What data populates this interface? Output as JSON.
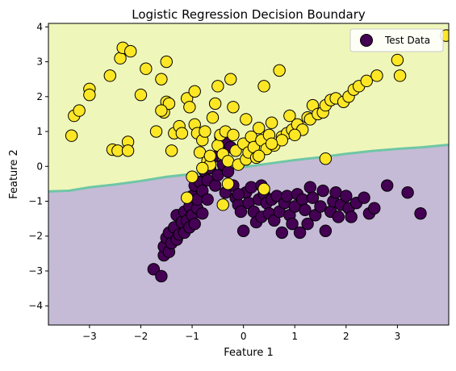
{
  "chart_data": {
    "type": "scatter",
    "title": "Logistic Regression Decision Boundary",
    "xlabel": "Feature 1",
    "ylabel": "Feature 2",
    "xlim": [
      -3.8,
      4.0
    ],
    "ylim": [
      -4.55,
      4.1
    ],
    "xticks": [
      -3,
      -2,
      -1,
      0,
      1,
      2,
      3
    ],
    "yticks": [
      -4,
      -3,
      -2,
      -1,
      0,
      1,
      2,
      3,
      4
    ],
    "grid": false,
    "legend": {
      "position": "top-right",
      "entries": [
        {
          "label": "Test Data",
          "marker_color": "#440154"
        }
      ]
    },
    "decision_boundary": {
      "description_colors": {
        "class0_region": "#c6bbd6",
        "class1_region": "#eff6b9",
        "boundary_line": "#6fc6a6"
      },
      "boundary_points": [
        [
          -3.8,
          -0.72
        ],
        [
          -3.4,
          -0.7
        ],
        [
          -3.0,
          -0.6
        ],
        [
          -2.5,
          -0.52
        ],
        [
          -2.0,
          -0.42
        ],
        [
          -1.5,
          -0.3
        ],
        [
          -1.0,
          -0.22
        ],
        [
          -0.5,
          -0.12
        ],
        [
          0.0,
          -0.02
        ],
        [
          0.5,
          0.08
        ],
        [
          1.0,
          0.18
        ],
        [
          1.5,
          0.26
        ],
        [
          2.0,
          0.36
        ],
        [
          2.5,
          0.44
        ],
        [
          3.0,
          0.5
        ],
        [
          3.5,
          0.55
        ],
        [
          4.0,
          0.62
        ]
      ]
    },
    "series": [
      {
        "class": 0,
        "color": "#440154",
        "points": [
          [
            -1.75,
            -2.95
          ],
          [
            -1.6,
            -3.15
          ],
          [
            -1.55,
            -2.55
          ],
          [
            -1.55,
            -2.3
          ],
          [
            -1.5,
            -2.05
          ],
          [
            -1.45,
            -2.45
          ],
          [
            -1.45,
            -1.9
          ],
          [
            -1.4,
            -2.2
          ],
          [
            -1.35,
            -1.75
          ],
          [
            -1.3,
            -2.1
          ],
          [
            -1.3,
            -1.4
          ],
          [
            -1.25,
            -1.95
          ],
          [
            -1.2,
            -1.6
          ],
          [
            -1.15,
            -1.9
          ],
          [
            -1.15,
            -1.3
          ],
          [
            -1.1,
            -1.55
          ],
          [
            -1.05,
            -1.15
          ],
          [
            -1.05,
            -1.75
          ],
          [
            -1.0,
            -0.85
          ],
          [
            -1.0,
            -1.4
          ],
          [
            -0.95,
            -1.65
          ],
          [
            -0.95,
            -0.55
          ],
          [
            -0.9,
            -1.2
          ],
          [
            -0.9,
            -0.95
          ],
          [
            -0.85,
            -0.45
          ],
          [
            -0.8,
            -1.35
          ],
          [
            -0.8,
            -0.7
          ],
          [
            -0.75,
            -0.15
          ],
          [
            -0.7,
            -0.95
          ],
          [
            -0.7,
            -0.4
          ],
          [
            -0.65,
            -0.05
          ],
          [
            -0.6,
            0.25
          ],
          [
            -0.55,
            -0.55
          ],
          [
            -0.5,
            -0.25
          ],
          [
            -0.45,
            0.85
          ],
          [
            -0.45,
            0.45
          ],
          [
            -0.4,
            0.05
          ],
          [
            -0.35,
            -0.75
          ],
          [
            -0.35,
            0.75
          ],
          [
            -0.3,
            -0.15
          ],
          [
            -0.25,
            0.55
          ],
          [
            -0.2,
            -0.55
          ],
          [
            -0.15,
            -0.9
          ],
          [
            -0.1,
            -1.1
          ],
          [
            -0.05,
            -1.3
          ],
          [
            0.0,
            -1.85
          ],
          [
            0.05,
            -0.75
          ],
          [
            0.1,
            -1.05
          ],
          [
            0.15,
            -0.6
          ],
          [
            0.2,
            -1.3
          ],
          [
            0.25,
            -1.6
          ],
          [
            0.3,
            -0.95
          ],
          [
            0.35,
            -1.45
          ],
          [
            0.4,
            -0.8
          ],
          [
            0.45,
            -1.05
          ],
          [
            0.5,
            -1.35
          ],
          [
            0.55,
            -0.95
          ],
          [
            0.6,
            -1.55
          ],
          [
            0.65,
            -0.85
          ],
          [
            0.7,
            -1.3
          ],
          [
            0.75,
            -1.9
          ],
          [
            0.8,
            -1.05
          ],
          [
            0.85,
            -0.85
          ],
          [
            0.9,
            -1.4
          ],
          [
            0.95,
            -1.65
          ],
          [
            1.0,
            -1.15
          ],
          [
            1.05,
            -0.8
          ],
          [
            1.1,
            -1.9
          ],
          [
            1.15,
            -0.95
          ],
          [
            1.2,
            -1.25
          ],
          [
            1.25,
            -1.65
          ],
          [
            1.3,
            -0.6
          ],
          [
            1.35,
            -0.9
          ],
          [
            1.4,
            -1.4
          ],
          [
            1.5,
            -1.15
          ],
          [
            1.55,
            -0.7
          ],
          [
            1.6,
            -1.85
          ],
          [
            1.7,
            -1.3
          ],
          [
            1.75,
            -1.0
          ],
          [
            1.8,
            -0.75
          ],
          [
            1.85,
            -1.45
          ],
          [
            1.9,
            -1.1
          ],
          [
            2.0,
            -0.85
          ],
          [
            2.05,
            -1.2
          ],
          [
            2.1,
            -1.45
          ],
          [
            2.2,
            -1.05
          ],
          [
            2.35,
            -0.9
          ],
          [
            2.45,
            -1.35
          ],
          [
            2.55,
            -1.2
          ],
          [
            2.8,
            -0.55
          ],
          [
            3.2,
            -0.75
          ],
          [
            3.45,
            -1.35
          ],
          [
            0.35,
            -0.55
          ],
          [
            -0.1,
            -0.8
          ]
        ]
      },
      {
        "class": 1,
        "color": "#fde725",
        "points": [
          [
            -3.35,
            0.88
          ],
          [
            -3.3,
            1.45
          ],
          [
            -3.2,
            1.6
          ],
          [
            -3.0,
            2.22
          ],
          [
            -3.0,
            2.05
          ],
          [
            -2.6,
            2.6
          ],
          [
            -2.55,
            0.48
          ],
          [
            -2.45,
            0.45
          ],
          [
            -2.4,
            3.1
          ],
          [
            -2.35,
            3.4
          ],
          [
            -2.25,
            0.7
          ],
          [
            -2.25,
            0.45
          ],
          [
            -2.2,
            3.3
          ],
          [
            -2.0,
            2.05
          ],
          [
            -1.9,
            2.8
          ],
          [
            -1.7,
            1.0
          ],
          [
            -1.6,
            2.5
          ],
          [
            -1.55,
            1.55
          ],
          [
            -1.5,
            3.0
          ],
          [
            -1.5,
            1.85
          ],
          [
            -1.45,
            1.8
          ],
          [
            -1.4,
            0.45
          ],
          [
            -1.35,
            0.95
          ],
          [
            -1.25,
            1.15
          ],
          [
            -1.2,
            0.95
          ],
          [
            -1.1,
            1.95
          ],
          [
            -1.05,
            1.7
          ],
          [
            -0.95,
            1.2
          ],
          [
            -0.95,
            2.15
          ],
          [
            -0.9,
            0.95
          ],
          [
            -0.85,
            0.4
          ],
          [
            -0.8,
            0.75
          ],
          [
            -0.75,
            1.0
          ],
          [
            -0.7,
            0.15
          ],
          [
            -0.65,
            0.05
          ],
          [
            -0.6,
            1.4
          ],
          [
            -0.55,
            1.8
          ],
          [
            -0.5,
            0.6
          ],
          [
            -0.5,
            2.3
          ],
          [
            -0.45,
            0.9
          ],
          [
            -0.4,
            0.35
          ],
          [
            -0.35,
            1.0
          ],
          [
            -0.3,
            0.15
          ],
          [
            -0.25,
            2.5
          ],
          [
            -0.2,
            1.7
          ],
          [
            -0.2,
            0.9
          ],
          [
            -0.15,
            0.45
          ],
          [
            -0.1,
            0.05
          ],
          [
            0.0,
            0.65
          ],
          [
            0.05,
            1.35
          ],
          [
            0.05,
            0.2
          ],
          [
            0.1,
            0.4
          ],
          [
            0.15,
            0.85
          ],
          [
            0.2,
            0.55
          ],
          [
            0.25,
            0.25
          ],
          [
            0.3,
            1.1
          ],
          [
            0.35,
            0.75
          ],
          [
            0.4,
            2.3
          ],
          [
            0.45,
            0.5
          ],
          [
            0.5,
            0.9
          ],
          [
            0.55,
            1.25
          ],
          [
            0.6,
            0.6
          ],
          [
            0.7,
            2.75
          ],
          [
            0.75,
            0.85
          ],
          [
            0.85,
            0.95
          ],
          [
            0.9,
            1.45
          ],
          [
            0.95,
            1.05
          ],
          [
            1.05,
            1.2
          ],
          [
            1.15,
            1.05
          ],
          [
            1.25,
            1.4
          ],
          [
            1.3,
            1.35
          ],
          [
            1.35,
            1.75
          ],
          [
            1.45,
            1.5
          ],
          [
            1.55,
            1.55
          ],
          [
            1.6,
            1.75
          ],
          [
            1.7,
            1.9
          ],
          [
            1.8,
            1.95
          ],
          [
            1.95,
            1.85
          ],
          [
            2.05,
            2.0
          ],
          [
            2.15,
            2.2
          ],
          [
            2.25,
            2.3
          ],
          [
            2.4,
            2.45
          ],
          [
            2.6,
            2.6
          ],
          [
            3.0,
            3.05
          ],
          [
            3.05,
            2.6
          ],
          [
            3.95,
            3.75
          ],
          [
            1.6,
            0.22
          ],
          [
            -0.3,
            -0.5
          ],
          [
            -0.4,
            -1.1
          ],
          [
            -0.8,
            -0.05
          ],
          [
            -1.0,
            -0.3
          ],
          [
            -1.1,
            -0.9
          ],
          [
            0.4,
            -0.65
          ],
          [
            0.75,
            0.75
          ],
          [
            0.3,
            0.3
          ],
          [
            -1.6,
            1.6
          ],
          [
            -0.65,
            0.3
          ],
          [
            0.55,
            0.65
          ],
          [
            1.0,
            0.9
          ]
        ]
      }
    ]
  }
}
